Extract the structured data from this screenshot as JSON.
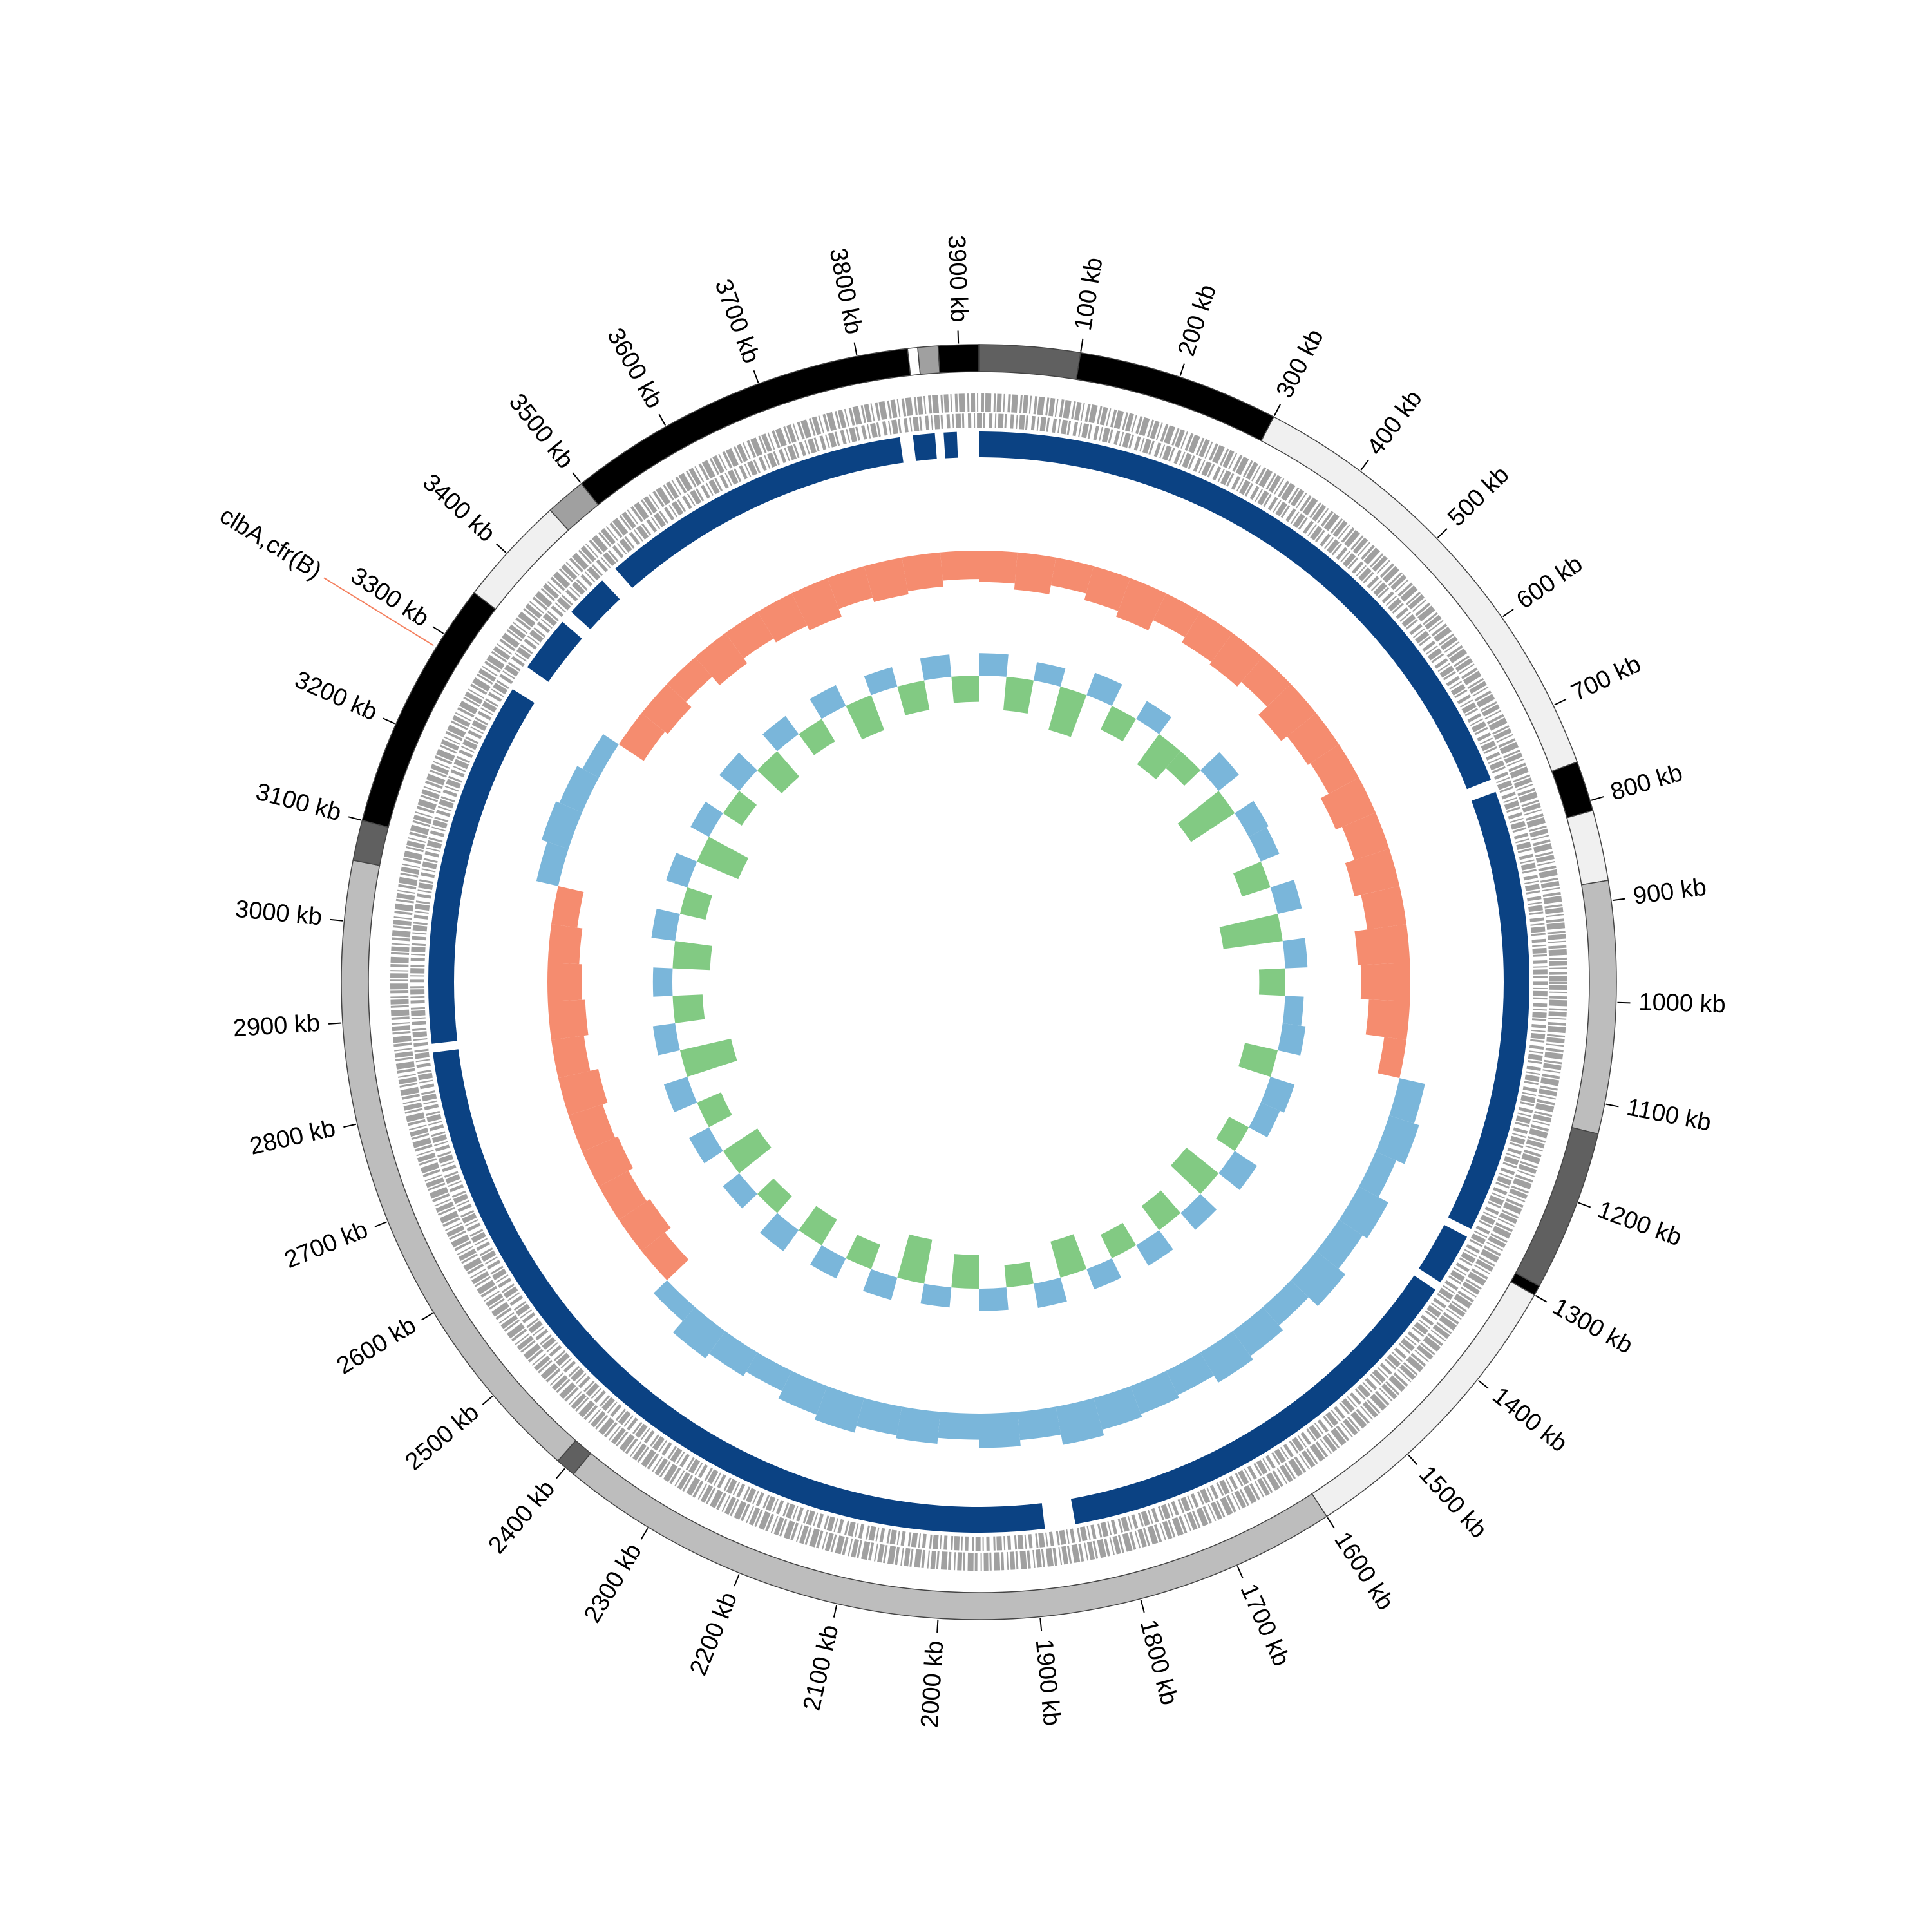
{
  "chart_data": {
    "type": "circular-genome",
    "xlim": [
      0,
      3920
    ],
    "xticks": [
      {
        "value": 100,
        "label": "100 kb"
      },
      {
        "value": 200,
        "label": "200 kb"
      },
      {
        "value": 300,
        "label": "300 kb"
      },
      {
        "value": 400,
        "label": "400 kb"
      },
      {
        "value": 500,
        "label": "500 kb"
      },
      {
        "value": 600,
        "label": "600 kb"
      },
      {
        "value": 700,
        "label": "700 kb"
      },
      {
        "value": 800,
        "label": "800 kb"
      },
      {
        "value": 900,
        "label": "900 kb"
      },
      {
        "value": 1000,
        "label": "1000 kb"
      },
      {
        "value": 1100,
        "label": "1100 kb"
      },
      {
        "value": 1200,
        "label": "1200 kb"
      },
      {
        "value": 1300,
        "label": "1300 kb"
      },
      {
        "value": 1400,
        "label": "1400 kb"
      },
      {
        "value": 1500,
        "label": "1500 kb"
      },
      {
        "value": 1600,
        "label": "1600 kb"
      },
      {
        "value": 1700,
        "label": "1700 kb"
      },
      {
        "value": 1800,
        "label": "1800 kb"
      },
      {
        "value": 1900,
        "label": "1900 kb"
      },
      {
        "value": 2000,
        "label": "2000 kb"
      },
      {
        "value": 2100,
        "label": "2100 kb"
      },
      {
        "value": 2200,
        "label": "2200 kb"
      },
      {
        "value": 2300,
        "label": "2300 kb"
      },
      {
        "value": 2400,
        "label": "2400 kb"
      },
      {
        "value": 2500,
        "label": "2500 kb"
      },
      {
        "value": 2600,
        "label": "2600 kb"
      },
      {
        "value": 2700,
        "label": "2700 kb"
      },
      {
        "value": 2800,
        "label": "2800 kb"
      },
      {
        "value": 2900,
        "label": "2900 kb"
      },
      {
        "value": 3000,
        "label": "3000 kb"
      },
      {
        "value": 3100,
        "label": "3100 kb"
      },
      {
        "value": 3200,
        "label": "3200 kb"
      },
      {
        "value": 3300,
        "label": "3300 kb"
      },
      {
        "value": 3400,
        "label": "3400 kb"
      },
      {
        "value": 3500,
        "label": "3500 kb"
      },
      {
        "value": 3600,
        "label": "3600 kb"
      },
      {
        "value": 3700,
        "label": "3700 kb"
      },
      {
        "value": 3800,
        "label": "3800 kb"
      },
      {
        "value": 3900,
        "label": "3900 kb"
      }
    ],
    "contigs": [
      {
        "start": 0,
        "end": 100,
        "color": "#606060"
      },
      {
        "start": 100,
        "end": 300,
        "color": "#000000"
      },
      {
        "start": 300,
        "end": 760,
        "color": "#f0f0f0"
      },
      {
        "start": 760,
        "end": 810,
        "color": "#000000"
      },
      {
        "start": 810,
        "end": 880,
        "color": "#f0f0f0"
      },
      {
        "start": 880,
        "end": 1130,
        "color": "#bdbdbd"
      },
      {
        "start": 1130,
        "end": 1290,
        "color": "#606060"
      },
      {
        "start": 1290,
        "end": 1300,
        "color": "#000000"
      },
      {
        "start": 1300,
        "end": 1600,
        "color": "#f0f0f0"
      },
      {
        "start": 1600,
        "end": 2390,
        "color": "#bdbdbd"
      },
      {
        "start": 2390,
        "end": 2410,
        "color": "#606060"
      },
      {
        "start": 2410,
        "end": 3060,
        "color": "#bdbdbd"
      },
      {
        "start": 3060,
        "end": 3100,
        "color": "#606060"
      },
      {
        "start": 3100,
        "end": 3350,
        "color": "#000000"
      },
      {
        "start": 3350,
        "end": 3460,
        "color": "#f0f0f0"
      },
      {
        "start": 3460,
        "end": 3500,
        "color": "#a0a0a0"
      },
      {
        "start": 3500,
        "end": 3850,
        "color": "#000000"
      },
      {
        "start": 3850,
        "end": 3860,
        "color": "#ffffff"
      },
      {
        "start": 3860,
        "end": 3880,
        "color": "#a0a0a0"
      },
      {
        "start": 3880,
        "end": 3920,
        "color": "#000000"
      }
    ],
    "hits": {
      "color": "#0b4283",
      "starts": [
        0,
        760,
        1280,
        1350,
        1885,
        2870,
        3320,
        3400,
        3470,
        3845,
        3880
      ],
      "ends": [
        745,
        1270,
        1340,
        1850,
        2860,
        3290,
        3385,
        3450,
        3830,
        3870,
        3895
      ]
    },
    "x": [
      0,
      56,
      112,
      168,
      224,
      280,
      336,
      392,
      448,
      504,
      560,
      616,
      672,
      728,
      784,
      840,
      896,
      952,
      1008,
      1064,
      1120,
      1176,
      1232,
      1288,
      1344,
      1400,
      1456,
      1512,
      1568,
      1624,
      1680,
      1736,
      1792,
      1848,
      1904,
      1960,
      2016,
      2072,
      2128,
      2184,
      2240,
      2296,
      2352,
      2408,
      2464,
      2520,
      2576,
      2632,
      2688,
      2744,
      2800,
      2856,
      2912,
      2968,
      3024,
      3080,
      3136,
      3192,
      3248,
      3304,
      3360,
      3416,
      3472,
      3528,
      3584,
      3640,
      3696,
      3752,
      3808,
      3864
    ],
    "series": [
      {
        "colors": [
          "#f4805f",
          "#6baed6"
        ],
        "ylim": [
          -1,
          1
        ],
        "values": [
          -0.42,
          -0.5,
          -0.38,
          -0.47,
          -0.55,
          -0.4,
          -0.48,
          -0.52,
          -0.44,
          -0.6,
          -0.5,
          -0.46,
          -0.58,
          -0.49,
          -0.62,
          -0.53,
          -0.7,
          -0.66,
          -0.55,
          -0.3,
          0.35,
          0.42,
          0.3,
          0.45,
          0.38,
          0.5,
          0.33,
          0.41,
          0.47,
          0.36,
          0.4,
          0.44,
          0.52,
          0.38,
          0.46,
          0.35,
          0.43,
          0.39,
          0.48,
          0.41,
          0.3,
          0.37,
          0.45,
          0.25,
          -0.4,
          -0.5,
          -0.45,
          -0.52,
          -0.48,
          -0.55,
          -0.44,
          -0.5,
          -0.46,
          -0.42,
          -0.35,
          0.3,
          0.38,
          0.33,
          0.25,
          -0.4,
          -0.45,
          -0.35,
          -0.5,
          -0.42,
          -0.48,
          -0.55,
          -0.44,
          -0.5,
          -0.46,
          -0.38
        ]
      },
      {
        "colors": [
          "#74c476",
          "#6baed6"
        ],
        "ylim": [
          -1,
          1
        ],
        "values": [
          0.3,
          -0.45,
          0.25,
          -0.6,
          0.32,
          -0.35,
          0.28,
          -0.5,
          -0.3,
          0.35,
          -0.7,
          0.3,
          0.27,
          -0.4,
          0.33,
          -0.8,
          0.3,
          -0.35,
          0.25,
          0.31,
          -0.45,
          0.34,
          0.28,
          -0.3,
          0.36,
          -0.55,
          0.3,
          -0.4,
          0.32,
          -0.35,
          0.29,
          -0.5,
          0.33,
          -0.3,
          0.3,
          -0.45,
          0.27,
          -0.6,
          0.31,
          -0.35,
          0.3,
          -0.4,
          0.35,
          -0.3,
          0.28,
          -0.55,
          0.3,
          -0.35,
          0.33,
          -0.7,
          0.3,
          -0.4,
          0.26,
          -0.5,
          0.32,
          -0.35,
          0.3,
          -0.6,
          0.28,
          -0.3,
          0.34,
          -0.45,
          0.3,
          -0.35,
          0.31,
          -0.5,
          0.27,
          -0.4,
          0.3,
          -0.35
        ]
      }
    ],
    "annotation": {
      "text": "clbA,cfr(B)",
      "position": 3285,
      "color": "#1f77b4",
      "line_color": "#f4805f"
    }
  }
}
